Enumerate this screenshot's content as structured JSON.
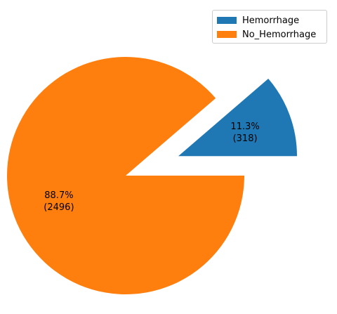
{
  "chart_data": {
    "type": "pie",
    "title": "",
    "slices": [
      {
        "label": "Hemorrhage",
        "value": 318,
        "percent_label": "11.3%",
        "count_label": "(318)",
        "color": "#1f77b4",
        "exploded": true
      },
      {
        "label": "No_Hemorrhage",
        "value": 2496,
        "percent_label": "88.7%",
        "count_label": "(2496)",
        "color": "#ff7f0e",
        "exploded": false
      }
    ],
    "legend_position": "top-right",
    "start_angle_deg": 0,
    "direction": "counterclockwise"
  }
}
